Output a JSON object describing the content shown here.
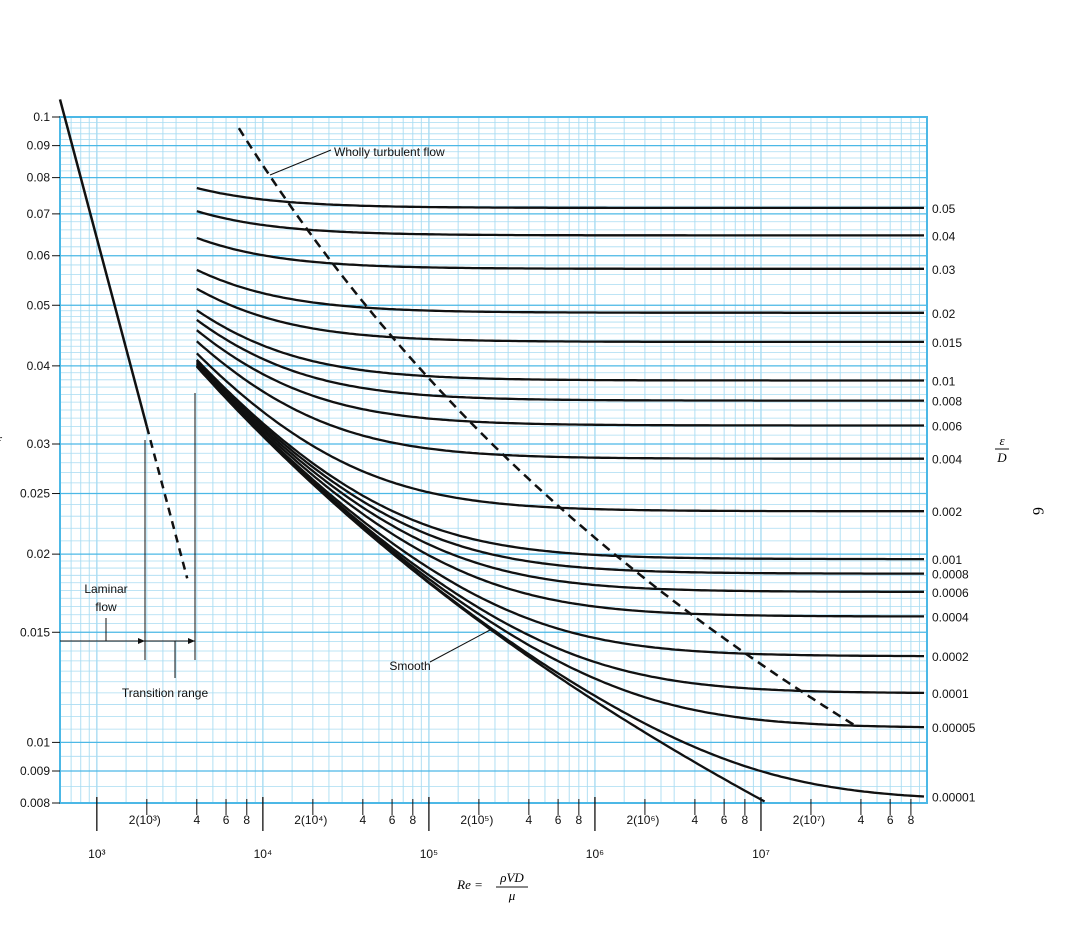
{
  "chart_data": {
    "type": "line",
    "x_scale": "log",
    "y_scale": "log",
    "xlim": [
      600,
      100000000
    ],
    "ylim": [
      0.008,
      0.1
    ],
    "grid": true,
    "y_ticks": [
      {
        "v": 0.1,
        "label": "0.1"
      },
      {
        "v": 0.09,
        "label": "0.09"
      },
      {
        "v": 0.08,
        "label": "0.08"
      },
      {
        "v": 0.07,
        "label": "0.07"
      },
      {
        "v": 0.06,
        "label": "0.06"
      },
      {
        "v": 0.05,
        "label": "0.05"
      },
      {
        "v": 0.04,
        "label": "0.04"
      },
      {
        "v": 0.03,
        "label": "0.03"
      },
      {
        "v": 0.025,
        "label": "0.025"
      },
      {
        "v": 0.02,
        "label": "0.02"
      },
      {
        "v": 0.015,
        "label": "0.015"
      },
      {
        "v": 0.01,
        "label": "0.01"
      },
      {
        "v": 0.009,
        "label": "0.009"
      },
      {
        "v": 0.008,
        "label": "0.008"
      }
    ],
    "x_ticks_upper": [
      {
        "v": 2000,
        "label": "2(10³)"
      },
      {
        "v": 4000,
        "label": "4"
      },
      {
        "v": 6000,
        "label": "6"
      },
      {
        "v": 8000,
        "label": "8"
      },
      {
        "v": 20000,
        "label": "2(10⁴)"
      },
      {
        "v": 40000,
        "label": "4"
      },
      {
        "v": 60000,
        "label": "6"
      },
      {
        "v": 80000,
        "label": "8"
      },
      {
        "v": 200000,
        "label": "2(10⁵)"
      },
      {
        "v": 400000,
        "label": "4"
      },
      {
        "v": 600000,
        "label": "6"
      },
      {
        "v": 800000,
        "label": "8"
      },
      {
        "v": 2000000,
        "label": "2(10⁶)"
      },
      {
        "v": 4000000,
        "label": "4"
      },
      {
        "v": 6000000,
        "label": "6"
      },
      {
        "v": 8000000,
        "label": "8"
      },
      {
        "v": 20000000,
        "label": "2(10⁷)"
      },
      {
        "v": 40000000,
        "label": "4"
      },
      {
        "v": 60000000,
        "label": "6"
      },
      {
        "v": 80000000,
        "label": "8"
      }
    ],
    "x_ticks_lower": [
      {
        "v": 1000,
        "label": "10³"
      },
      {
        "v": 10000,
        "label": "10⁴"
      },
      {
        "v": 100000,
        "label": "10⁵"
      },
      {
        "v": 1000000,
        "label": "10⁶"
      },
      {
        "v": 10000000,
        "label": "10⁷"
      }
    ],
    "roughness_series": [
      {
        "name": "0.05",
        "label": "0.05",
        "eps": 0.05
      },
      {
        "name": "0.04",
        "label": "0.04",
        "eps": 0.04
      },
      {
        "name": "0.03",
        "label": "0.03",
        "eps": 0.03
      },
      {
        "name": "0.02",
        "label": "0.02",
        "eps": 0.02
      },
      {
        "name": "0.015",
        "label": "0.015",
        "eps": 0.015
      },
      {
        "name": "0.01",
        "label": "0.01",
        "eps": 0.01
      },
      {
        "name": "0.008",
        "label": "0.008",
        "eps": 0.008
      },
      {
        "name": "0.006",
        "label": "0.006",
        "eps": 0.006
      },
      {
        "name": "0.004",
        "label": "0.004",
        "eps": 0.004
      },
      {
        "name": "0.002",
        "label": "0.002",
        "eps": 0.002
      },
      {
        "name": "0.001",
        "label": "0.001",
        "eps": 0.001
      },
      {
        "name": "0.0008",
        "label": "0.0008",
        "eps": 0.0008
      },
      {
        "name": "0.0006",
        "label": "0.0006",
        "eps": 0.0006
      },
      {
        "name": "0.0004",
        "label": "0.0004",
        "eps": 0.0004
      },
      {
        "name": "0.0002",
        "label": "0.0002",
        "eps": 0.0002
      },
      {
        "name": "0.0001",
        "label": "0.0001",
        "eps": 0.0001
      },
      {
        "name": "0.00005",
        "label": "0.00005",
        "eps": 5e-05
      },
      {
        "name": "0.00001",
        "label": "0.00001",
        "eps": 1e-05
      }
    ],
    "laminar_line": [
      [
        600,
        0.1067
      ],
      [
        2000,
        0.032
      ]
    ],
    "laminar_extension": [
      [
        2000,
        0.032
      ],
      [
        3500,
        0.0183
      ]
    ],
    "right_axis_symbol_top": "ε",
    "right_axis_symbol_bottom": "D",
    "y_axis_symbol": "f",
    "x_axis_label_prefix": "Re =",
    "x_axis_label_numerator": "ρVD",
    "x_axis_label_denominator": "μ",
    "annotations": {
      "wholly_turbulent": "Wholly turbulent flow",
      "laminar_line1": "Laminar",
      "laminar_line2": "flow",
      "transition_range": "Transition range",
      "smooth": "Smooth"
    },
    "page_number": "6"
  },
  "colors": {
    "grid": "#4cb8e6",
    "grid_light": "#a9dcf2",
    "curve": "#111111"
  }
}
